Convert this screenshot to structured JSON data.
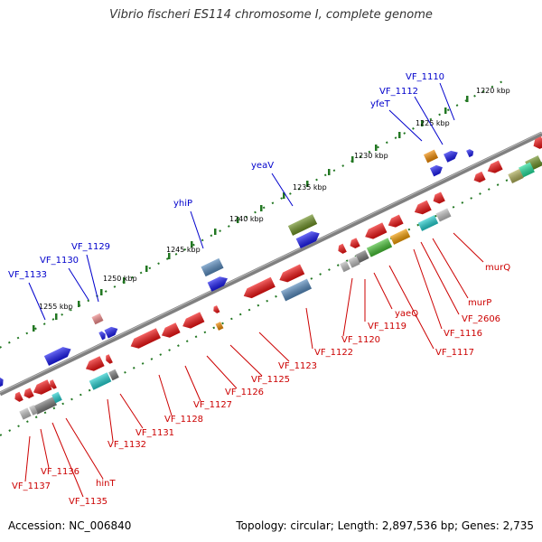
{
  "title": "Vibrio fischeri ES114 chromosome I, complete genome",
  "accession": "Accession: NC_006840",
  "topology": "Topology: circular; Length: 2,897,536 bp; Genes: 2,735",
  "colors": {
    "forward_label": "#0000cc",
    "reverse_label": "#cc0000",
    "backbone": "#808080",
    "tick": "#227722"
  },
  "kbp_labels": [
    "1220 kbp",
    "1225 kbp",
    "1230 kbp",
    "1235 kbp",
    "1240 kbp",
    "1245 kbp",
    "1250 kbp",
    "1255 kbp"
  ],
  "forward_genes": [
    "VF_1110",
    "VF_1112",
    "yfeT",
    "yeaV",
    "yhiP",
    "VF_1129",
    "VF_1130",
    "VF_1133"
  ],
  "reverse_genes": [
    "murQ",
    "murP",
    "VF_2606",
    "VF_1116",
    "VF_1117",
    "yaeQ",
    "VF_1119",
    "VF_1120",
    "VF_1122",
    "VF_1123",
    "VF_1125",
    "VF_1126",
    "VF_1127",
    "VF_1128",
    "VF_1131",
    "VF_1132",
    "hinT",
    "VF_1135",
    "VF_1136",
    "VF_1137"
  ]
}
